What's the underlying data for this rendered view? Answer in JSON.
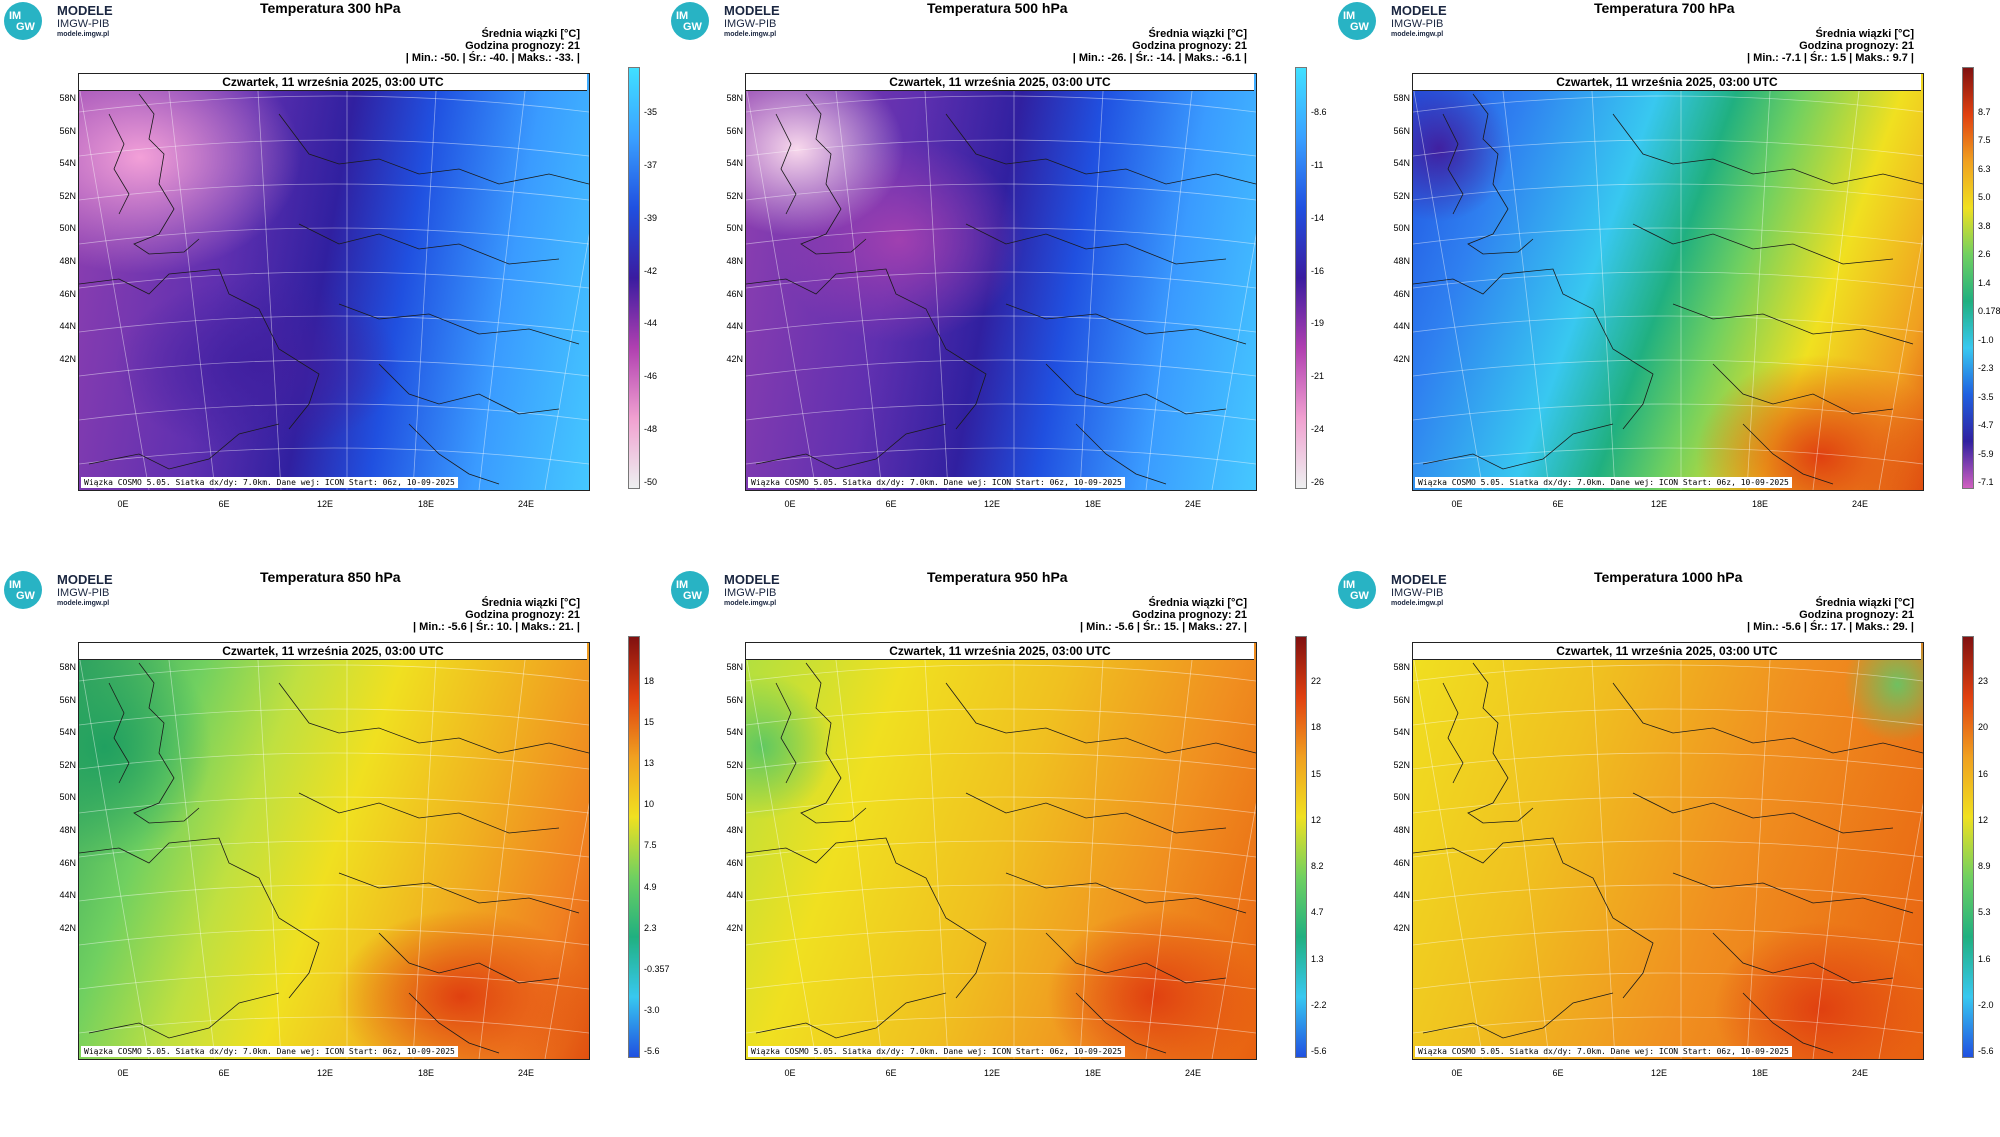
{
  "logo": {
    "name": "MODELE",
    "org": "IMGW-PIB",
    "url": "modele.imgw.pl",
    "mark_top": "IM",
    "mark_bottom": "GW"
  },
  "stats_title": "Średnia wiązki [°C]",
  "forecast_hour": "Godzina prognozy: 21",
  "date_text": "Czwartek, 11 września 2025, 03:00 UTC",
  "footer": "Wiązka COSMO 5.05. Siatka dx/dy: 7.0km. Dane wej: ICON Start: 06z, 10-09-2025",
  "lat_labels": [
    "58N",
    "56N",
    "54N",
    "52N",
    "50N",
    "48N",
    "46N",
    "44N",
    "42N"
  ],
  "lon_labels": [
    "0E",
    "6E",
    "12E",
    "18E",
    "24E"
  ],
  "panels": [
    {
      "title": "Temperatura 300 hPa",
      "stats": "| Min.: -50. | Śr.: -40. | Maks.: -33. |",
      "cbar": [
        "-35",
        "-37",
        "-39",
        "-42",
        "-44",
        "-46",
        "-48",
        "-50"
      ],
      "cbar_colors": [
        "#eef0f0",
        "#f0a0d0",
        "#b040b0",
        "#3a1ca0",
        "#2050e0",
        "#3aa0ff",
        "#40e0ff"
      ]
    },
    {
      "title": "Temperatura 500 hPa",
      "stats": "| Min.: -26. | Śr.: -14. | Maks.: -6.1 |",
      "cbar": [
        "-8.6",
        "-11",
        "-14",
        "-16",
        "-19",
        "-21",
        "-24",
        "-26"
      ],
      "cbar_colors": [
        "#eef0f0",
        "#f0a0d0",
        "#b040b0",
        "#3a1ca0",
        "#2050e0",
        "#3aa0ff",
        "#40e0ff"
      ]
    },
    {
      "title": "Temperatura 700 hPa",
      "stats": "| Min.: -7.1 | Śr.: 1.5 | Maks.: 9.7 |",
      "cbar": [
        "8.7",
        "7.5",
        "6.3",
        "5.0",
        "3.8",
        "2.6",
        "1.4",
        "0.178",
        "-1.0",
        "-2.3",
        "-3.5",
        "-4.7",
        "-5.9",
        "-7.1"
      ],
      "cbar_colors": [
        "#d060c0",
        "#3020a0",
        "#1f60e0",
        "#38c8f0",
        "#20b080",
        "#70d060",
        "#f0e020",
        "#f0a020",
        "#e04010",
        "#801010"
      ]
    },
    {
      "title": "Temperatura 850 hPa",
      "stats": "| Min.: -5.6 | Śr.: 10. | Maks.: 21. |",
      "cbar": [
        "18",
        "15",
        "13",
        "10",
        "7.5",
        "4.9",
        "2.3",
        "-0.357",
        "-3.0",
        "-5.6"
      ],
      "cbar_colors": [
        "#2050e0",
        "#38c8f0",
        "#20b080",
        "#70d060",
        "#f0e020",
        "#f0a020",
        "#e04010",
        "#801010"
      ]
    },
    {
      "title": "Temperatura 950 hPa",
      "stats": "| Min.: -5.6 | Śr.: 15. | Maks.: 27. |",
      "cbar": [
        "22",
        "18",
        "15",
        "12",
        "8.2",
        "4.7",
        "1.3",
        "-2.2",
        "-5.6"
      ],
      "cbar_colors": [
        "#2050e0",
        "#38c8f0",
        "#20b080",
        "#70d060",
        "#f0e020",
        "#f0a020",
        "#e04010",
        "#801010"
      ]
    },
    {
      "title": "Temperatura 1000 hPa",
      "stats": "| Min.: -5.6 | Śr.: 17. | Maks.: 29. |",
      "cbar": [
        "23",
        "20",
        "16",
        "12",
        "8.9",
        "5.3",
        "1.6",
        "-2.0",
        "-5.6"
      ],
      "cbar_colors": [
        "#2050e0",
        "#38c8f0",
        "#20b080",
        "#70d060",
        "#f0e020",
        "#f0a020",
        "#e04010",
        "#801010"
      ]
    }
  ]
}
